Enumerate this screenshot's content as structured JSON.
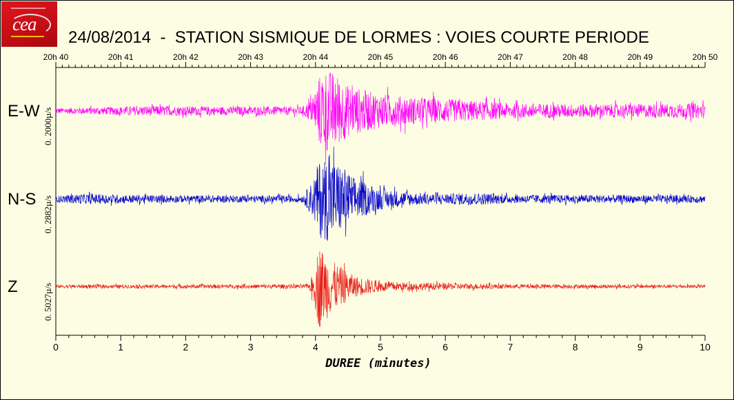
{
  "title": "24/08/2014  -  STATION SISMIQUE DE LORMES : VOIES COURTE PERIODE",
  "colors": {
    "background": "#fdfde3",
    "ew": "#ff00ff",
    "ns": "#0000cc",
    "z": "#e8201a",
    "logo_red": "#d5101a"
  },
  "logo": {
    "icon": "cea-logo"
  },
  "chart_data": {
    "type": "line",
    "xlabel": "DUREE (minutes)",
    "xlim": [
      0,
      10
    ],
    "x_ticks": [
      "0",
      "1",
      "2",
      "3",
      "4",
      "5",
      "6",
      "7",
      "8",
      "9",
      "10"
    ],
    "top_axis_ticks": [
      "20h 40",
      "20h 41",
      "20h 42",
      "20h 43",
      "20h 44",
      "20h 45",
      "20h 46",
      "20h 47",
      "20h 48",
      "20h 49",
      "20h 50"
    ],
    "grid": false,
    "series": [
      {
        "name": "E-W",
        "scale_label": "0. 2000µ/s",
        "color": "#ff00ff",
        "noise_amplitude": 0.07,
        "envelope": [
          [
            0,
            0.07
          ],
          [
            0.5,
            0.08
          ],
          [
            1.5,
            0.12
          ],
          [
            2.5,
            0.1
          ],
          [
            3.8,
            0.1
          ],
          [
            3.95,
            0.3
          ],
          [
            4.05,
            0.8
          ],
          [
            4.15,
            1.0
          ],
          [
            4.3,
            0.9
          ],
          [
            4.5,
            0.6
          ],
          [
            5.0,
            0.4
          ],
          [
            5.5,
            0.32
          ],
          [
            6.0,
            0.28
          ],
          [
            7.0,
            0.18
          ],
          [
            8.0,
            0.16
          ],
          [
            9.0,
            0.16
          ],
          [
            10.0,
            0.18
          ]
        ]
      },
      {
        "name": "N-S",
        "scale_label": "0. 2882µ/s",
        "color": "#0000cc",
        "noise_amplitude": 0.07,
        "envelope": [
          [
            0,
            0.07
          ],
          [
            0.4,
            0.12
          ],
          [
            1.5,
            0.09
          ],
          [
            3.8,
            0.08
          ],
          [
            3.95,
            0.4
          ],
          [
            4.05,
            0.9
          ],
          [
            4.2,
            1.0
          ],
          [
            4.4,
            0.8
          ],
          [
            4.6,
            0.5
          ],
          [
            5.0,
            0.25
          ],
          [
            5.5,
            0.15
          ],
          [
            6.0,
            0.12
          ],
          [
            6.4,
            0.15
          ],
          [
            7.0,
            0.1
          ],
          [
            10.0,
            0.09
          ]
        ]
      },
      {
        "name": "Z",
        "scale_label": "0. 5027µ/s",
        "color": "#e8201a",
        "noise_amplitude": 0.04,
        "envelope": [
          [
            0,
            0.04
          ],
          [
            3.9,
            0.05
          ],
          [
            3.98,
            0.4
          ],
          [
            4.05,
            1.0
          ],
          [
            4.15,
            0.8
          ],
          [
            4.3,
            0.55
          ],
          [
            4.6,
            0.25
          ],
          [
            5.0,
            0.12
          ],
          [
            5.5,
            0.09
          ],
          [
            6.0,
            0.08
          ],
          [
            7.0,
            0.05
          ],
          [
            10.0,
            0.04
          ]
        ]
      }
    ]
  }
}
